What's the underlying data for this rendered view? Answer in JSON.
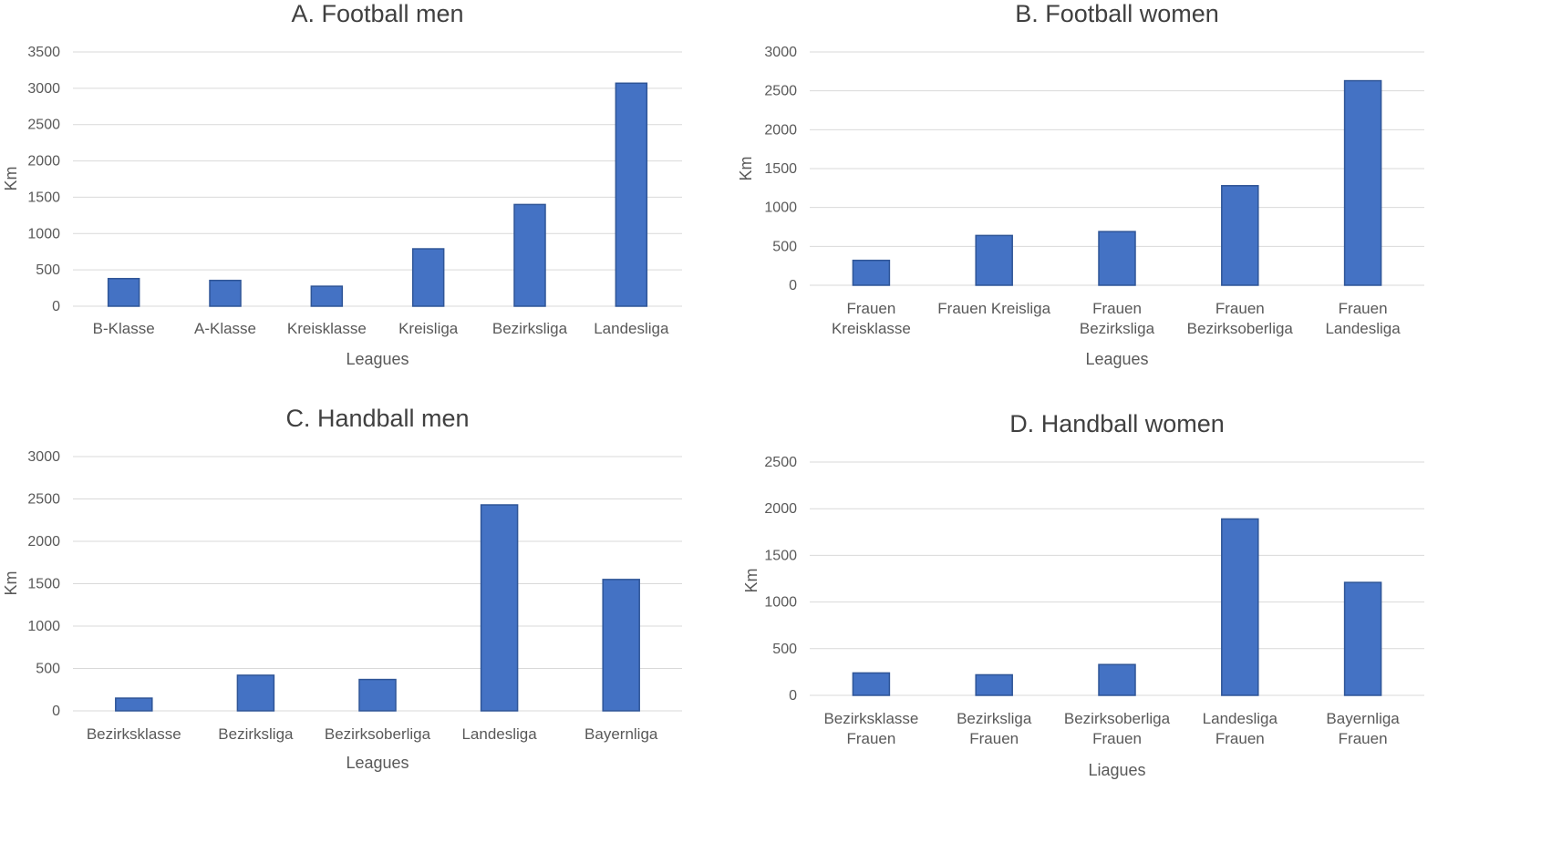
{
  "colors": {
    "bar": "#4472c4",
    "bar_edge": "#2f5597",
    "grid": "#d9d9d9"
  },
  "chart_data": [
    {
      "type": "bar",
      "title": "A. Football men",
      "xlabel": "Leagues",
      "ylabel": "Km",
      "ylim": [
        0,
        3500
      ],
      "yticks": [
        0,
        500,
        1000,
        1500,
        2000,
        2500,
        3000,
        3500
      ],
      "categories": [
        [
          "B-Klasse"
        ],
        [
          "A-Klasse"
        ],
        [
          "Kreisklasse"
        ],
        [
          "Kreisliga"
        ],
        [
          "Bezirksliga"
        ],
        [
          "Landesliga"
        ]
      ],
      "values": [
        380,
        355,
        275,
        790,
        1400,
        3070
      ],
      "grid": true,
      "legend": "none"
    },
    {
      "type": "bar",
      "title": "B. Football women",
      "xlabel": "Leagues",
      "ylabel": "Km",
      "ylim": [
        0,
        3000
      ],
      "yticks": [
        0,
        500,
        1000,
        1500,
        2000,
        2500,
        3000
      ],
      "categories": [
        [
          "Frauen",
          "Kreisklasse"
        ],
        [
          "Frauen Kreisliga"
        ],
        [
          "Frauen",
          "Bezirksliga"
        ],
        [
          "Frauen",
          "Bezirksoberliga"
        ],
        [
          "Frauen",
          "Landesliga"
        ]
      ],
      "values": [
        320,
        640,
        690,
        1280,
        2630
      ],
      "grid": true,
      "legend": "none"
    },
    {
      "type": "bar",
      "title": "C. Handball men",
      "xlabel": "Leagues",
      "ylabel": "Km",
      "ylim": [
        0,
        3000
      ],
      "yticks": [
        0,
        500,
        1000,
        1500,
        2000,
        2500,
        3000
      ],
      "categories": [
        [
          "Bezirksklasse"
        ],
        [
          "Bezirksliga"
        ],
        [
          "Bezirksoberliga"
        ],
        [
          "Landesliga"
        ],
        [
          "Bayernliga"
        ]
      ],
      "values": [
        150,
        420,
        370,
        2430,
        1550
      ],
      "grid": true,
      "legend": "none"
    },
    {
      "type": "bar",
      "title": "D. Handball women",
      "xlabel": "Liagues",
      "ylabel": "Km",
      "ylim": [
        0,
        2500
      ],
      "yticks": [
        0,
        500,
        1000,
        1500,
        2000,
        2500
      ],
      "categories": [
        [
          "Bezirksklasse",
          "Frauen"
        ],
        [
          "Bezirksliga",
          "Frauen"
        ],
        [
          "Bezirksoberliga",
          "Frauen"
        ],
        [
          "Landesliga",
          "Frauen"
        ],
        [
          "Bayernliga",
          "Frauen"
        ]
      ],
      "values": [
        240,
        220,
        330,
        1890,
        1210
      ],
      "grid": true,
      "legend": "none"
    }
  ]
}
